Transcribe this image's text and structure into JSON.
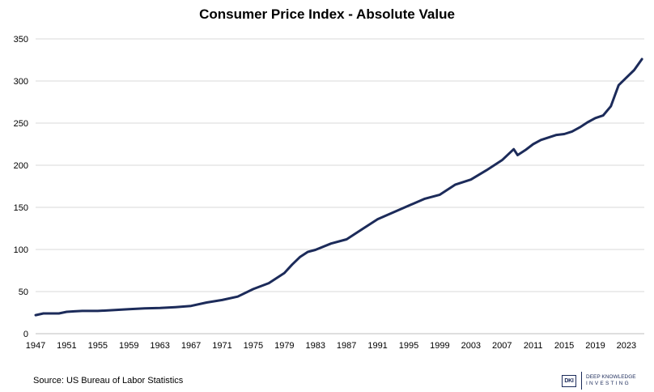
{
  "chart_data": {
    "type": "line",
    "title": "Consumer Price Index - Absolute Value",
    "xlabel": "",
    "ylabel": "",
    "xlim": [
      1947,
      2025.3
    ],
    "ylim": [
      0,
      350
    ],
    "yticks": [
      0,
      50,
      100,
      150,
      200,
      250,
      300,
      350
    ],
    "xticks": [
      1947,
      1951,
      1955,
      1959,
      1963,
      1967,
      1971,
      1975,
      1979,
      1983,
      1987,
      1991,
      1995,
      1999,
      2003,
      2007,
      2011,
      2015,
      2019,
      2023
    ],
    "grid": "horizontal",
    "line_color": "#1c2b5a",
    "series": [
      {
        "x": [
          1947,
          1948,
          1949,
          1950,
          1951,
          1952,
          1953,
          1955,
          1957,
          1959,
          1961,
          1963,
          1965,
          1967,
          1969,
          1971,
          1973,
          1975,
          1977,
          1979,
          1980,
          1981,
          1982,
          1983,
          1985,
          1987,
          1989,
          1991,
          1993,
          1995,
          1997,
          1999,
          2001,
          2003,
          2005,
          2007,
          2008.5,
          2009,
          2010,
          2011,
          2012,
          2013,
          2014,
          2015,
          2016,
          2017,
          2018,
          2019,
          2020,
          2021,
          2022,
          2023,
          2024,
          2025
        ],
        "values": [
          22,
          24,
          24,
          24,
          26,
          26.5,
          27,
          27,
          28,
          29,
          30,
          30.5,
          31.5,
          33,
          37,
          40,
          44,
          53,
          60,
          72,
          82,
          91,
          97,
          99.5,
          107,
          112,
          124,
          136,
          144,
          152,
          160,
          165,
          177,
          183,
          194,
          206,
          219,
          212,
          218,
          225,
          230,
          233,
          236,
          237,
          240,
          245,
          251,
          256,
          259,
          270,
          295,
          304,
          313,
          326
        ]
      }
    ]
  },
  "footer": {
    "source": "Source: US Bureau of Labor Statistics",
    "brand_mark": "DKI",
    "brand_line1": "DEEP KNOWLEDGE",
    "brand_line2": "INVESTING"
  }
}
